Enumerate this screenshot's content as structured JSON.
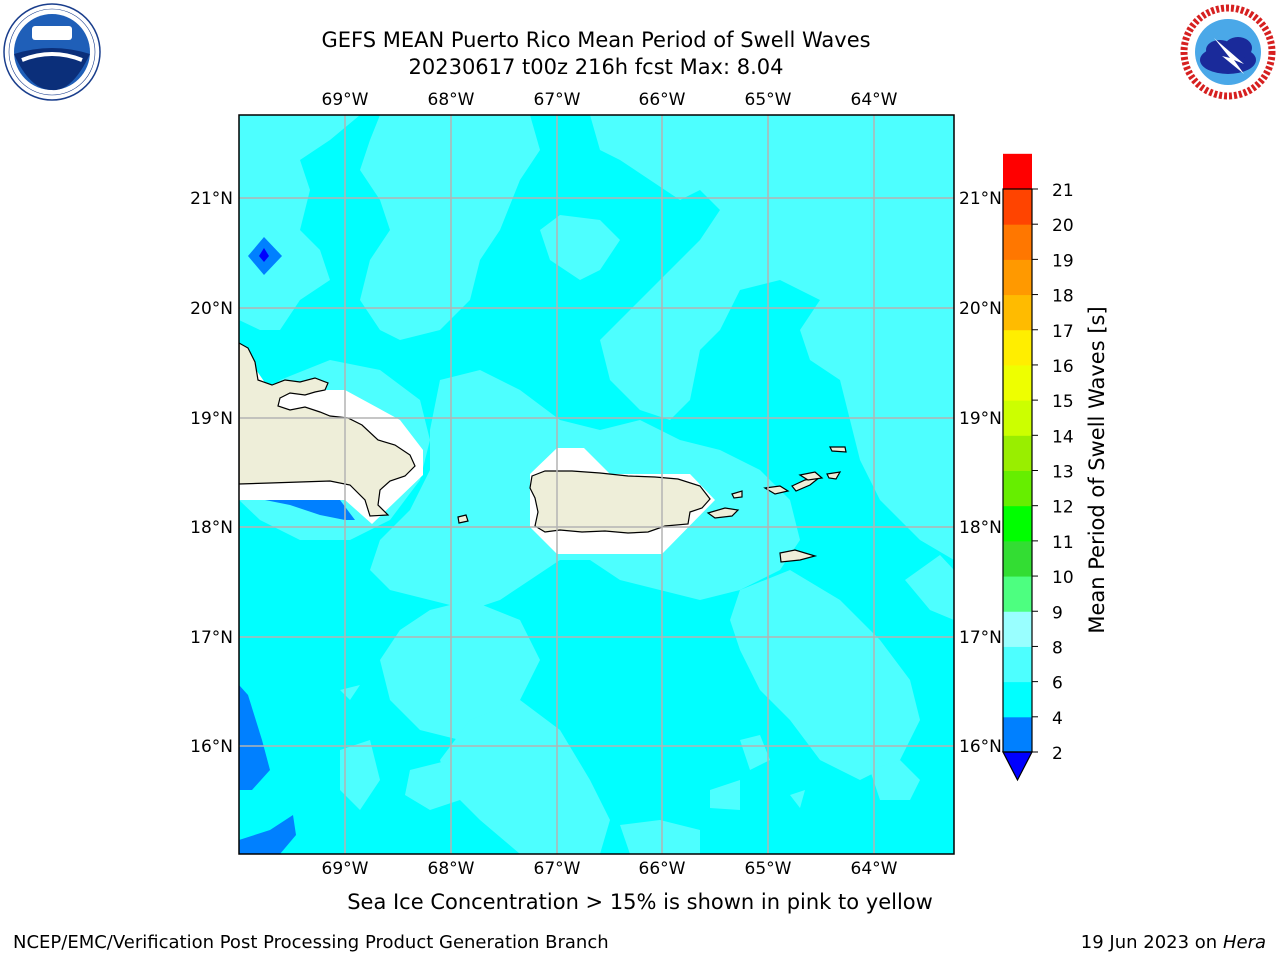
{
  "title": {
    "line1": "GEFS MEAN Puerto Rico Mean Period of Swell Waves",
    "line2": "20230617 t00z 216h fcst   Max: 8.04"
  },
  "map": {
    "lon_labels": [
      "69°W",
      "68°W",
      "67°W",
      "66°W",
      "65°W",
      "64°W"
    ],
    "lat_labels": [
      "21°N",
      "20°N",
      "19°N",
      "18°N",
      "17°N",
      "16°N"
    ],
    "colors": {
      "ocean_6_8": "#00ffff",
      "ocean_8_9": "#4dffff",
      "ocean_4_6": "#0080ff",
      "ocean_2_4": "#0000ff",
      "land": "#eeeed9",
      "masked": "#ffffff",
      "grid": "#b4b4b4"
    }
  },
  "colorbar": {
    "title": "Mean Period of Swell Waves [s]",
    "ticks": [
      "2",
      "4",
      "6",
      "8",
      "9",
      "10",
      "11",
      "12",
      "13",
      "14",
      "15",
      "16",
      "17",
      "18",
      "19",
      "20",
      "21"
    ],
    "colors": [
      "#0080ff",
      "#00ffff",
      "#4dffff",
      "#99ffff",
      "#4dff80",
      "#33dd33",
      "#00ff00",
      "#66ee00",
      "#99ee00",
      "#ccff00",
      "#eeff00",
      "#ffee00",
      "#ffbb00",
      "#ff9900",
      "#ff7700",
      "#ff4400",
      "#ff0000"
    ],
    "extend_color": "#0000ff"
  },
  "caption": "Sea Ice Concentration > 15% is shown in pink to yellow",
  "footer": {
    "left": "NCEP/EMC/Verification Post Processing Product Generation Branch",
    "date": "19 Jun 2023 on",
    "host": "Hera"
  }
}
